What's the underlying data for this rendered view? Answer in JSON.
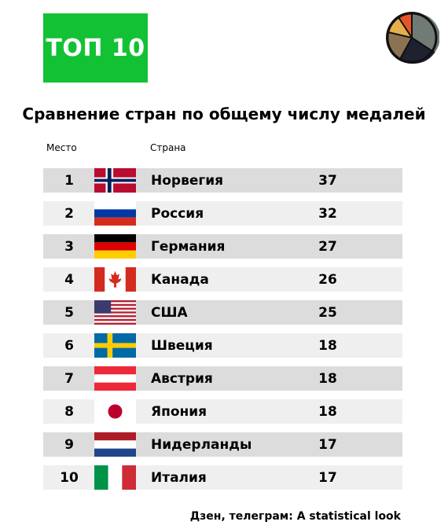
{
  "badge": "ТОП 10",
  "colors": {
    "badge_bg": "#13c234",
    "row_dark": "#dcdcdc",
    "row_light": "#efefef"
  },
  "logo_icon": "pie-chart-icon",
  "footer": "Дзен, телеграм: A statistical look",
  "chart_data": {
    "type": "table",
    "title": "Сравнение стран по общему числу медалей",
    "columns": [
      "Место",
      "Страна"
    ],
    "rows": [
      {
        "rank": "1",
        "country": "Норвегия",
        "value": "37",
        "flag": "norway-flag-icon"
      },
      {
        "rank": "2",
        "country": "Россия",
        "value": "32",
        "flag": "russia-flag-icon"
      },
      {
        "rank": "3",
        "country": "Германия",
        "value": "27",
        "flag": "germany-flag-icon"
      },
      {
        "rank": "4",
        "country": "Канада",
        "value": "26",
        "flag": "canada-flag-icon"
      },
      {
        "rank": "5",
        "country": "США",
        "value": "25",
        "flag": "usa-flag-icon"
      },
      {
        "rank": "6",
        "country": "Швеция",
        "value": "18",
        "flag": "sweden-flag-icon"
      },
      {
        "rank": "7",
        "country": "Австрия",
        "value": "18",
        "flag": "austria-flag-icon"
      },
      {
        "rank": "8",
        "country": "Япония",
        "value": "18",
        "flag": "japan-flag-icon"
      },
      {
        "rank": "9",
        "country": "Нидерланды",
        "value": "17",
        "flag": "netherlands-flag-icon"
      },
      {
        "rank": "10",
        "country": "Италия",
        "value": "17",
        "flag": "italy-flag-icon"
      }
    ]
  }
}
